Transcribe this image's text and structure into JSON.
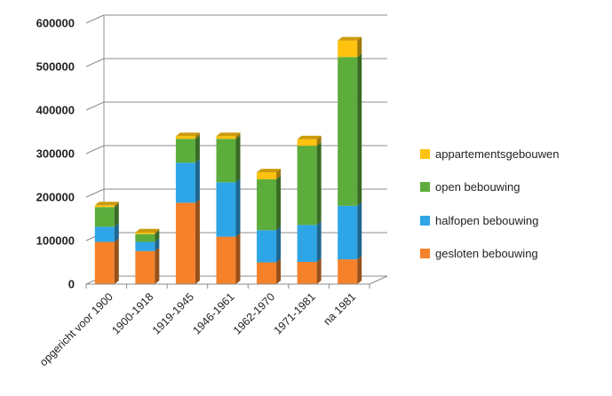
{
  "chart_data": {
    "type": "bar",
    "stacked": true,
    "three_d": true,
    "title": "",
    "xlabel": "",
    "ylabel": "",
    "ylim": [
      0,
      600000
    ],
    "yticks": [
      0,
      100000,
      200000,
      300000,
      400000,
      500000,
      600000
    ],
    "ytick_labels": [
      "0",
      "100000",
      "200000",
      "300000",
      "400000",
      "500000",
      "600000"
    ],
    "grid": "horizontal",
    "legend_position": "right",
    "categories": [
      "opgericht voor 1900",
      "1900-1918",
      "1919-1945",
      "1946-1961",
      "1962-1970",
      "1971-1981",
      "na 1981"
    ],
    "series": [
      {
        "name": "gesloten bebouwing",
        "color": "#f5822a",
        "values": [
          97000,
          76000,
          187000,
          109000,
          50000,
          51000,
          57000
        ]
      },
      {
        "name": "halfopen bebouwing",
        "color": "#2ea5e6",
        "values": [
          35000,
          21000,
          92000,
          125000,
          74000,
          85000,
          123000
        ]
      },
      {
        "name": "open bebouwing",
        "color": "#5cad3c",
        "values": [
          45000,
          18000,
          55000,
          100000,
          117000,
          182000,
          342000
        ]
      },
      {
        "name": "appartementsgebouwen",
        "color": "#ffc20e",
        "values": [
          4000,
          4000,
          6000,
          6000,
          16000,
          15000,
          38000
        ]
      }
    ]
  }
}
